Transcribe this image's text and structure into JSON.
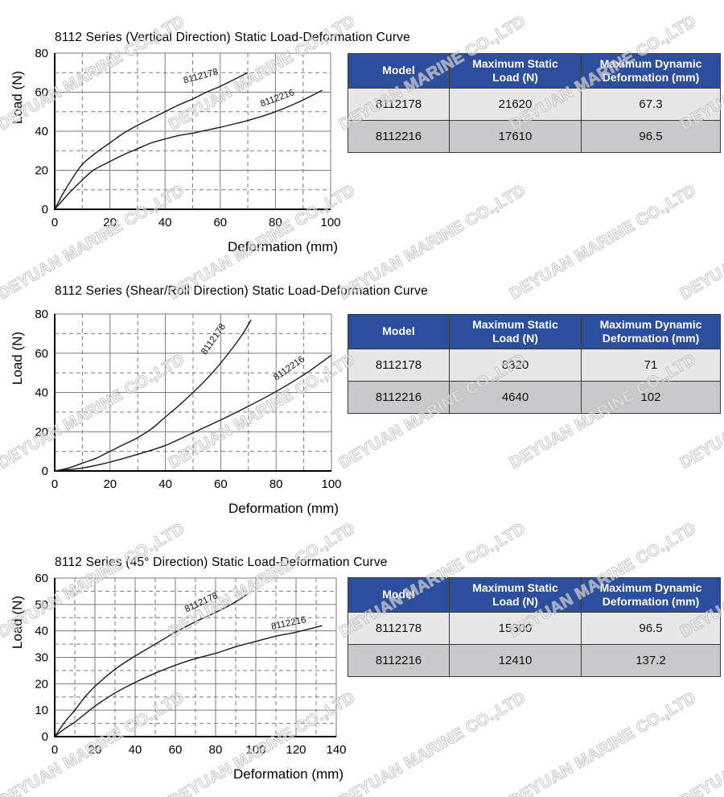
{
  "watermark": {
    "text": "DEYUAN MARINE CO.,LTD"
  },
  "colors": {
    "table_header_bg": "#2d4e9c",
    "table_row_light": "#e7e7e7",
    "table_row_dark": "#c9c9cb",
    "grid_line": "#7a7a7a",
    "curve": "#1a1a1a",
    "axis": "#000000"
  },
  "sections": [
    {
      "title": "8112 Series (Vertical Direction) Static Load-Deformation Curve",
      "table": {
        "headers": [
          "Model",
          "Maximum Static\nLoad (N)",
          "Maximum Dynamic\nDeformation (mm)"
        ],
        "rows": [
          [
            "8112178",
            "21620",
            "67.3"
          ],
          [
            "8112216",
            "17610",
            "96.5"
          ]
        ]
      }
    },
    {
      "title": "8112 Series (Shear/Roll Direction) Static Load-Deformation Curve",
      "table": {
        "headers": [
          "Model",
          "Maximum Static\nLoad (N)",
          "Maximum Dynamic\nDeformation (mm)"
        ],
        "rows": [
          [
            "8112178",
            "8320",
            "71"
          ],
          [
            "8112216",
            "4640",
            "102"
          ]
        ]
      }
    },
    {
      "title": "8112 Series (45° Direction) Static Load-Deformation Curve",
      "table": {
        "headers": [
          "Model",
          "Maximum Static\nLoad (N)",
          "Maximum Dynamic\nDeformation (mm)"
        ],
        "rows": [
          [
            "8112178",
            "15300",
            "96.5"
          ],
          [
            "8112216",
            "12410",
            "137.2"
          ]
        ]
      }
    }
  ],
  "chart_data": [
    {
      "type": "line",
      "title": "8112 Series (Vertical Direction) Static Load-Deformation Curve",
      "xlabel": "Deformation (mm)",
      "ylabel": "Load (N)",
      "xlim": [
        0,
        100
      ],
      "ylim": [
        0,
        80
      ],
      "xticks": [
        0,
        20,
        40,
        60,
        80,
        100
      ],
      "yticks": [
        0,
        20,
        40,
        60,
        80
      ],
      "x_minor": 10,
      "y_minor": 10,
      "grid": "solid major, dashed minor",
      "legend_position": "inline curve labels",
      "series": [
        {
          "name": "8112178",
          "points": [
            [
              0,
              0
            ],
            [
              3,
              8
            ],
            [
              6,
              15
            ],
            [
              10,
              23
            ],
            [
              15,
              29
            ],
            [
              20,
              34
            ],
            [
              25,
              39
            ],
            [
              30,
              43
            ],
            [
              35,
              46.5
            ],
            [
              40,
              50
            ],
            [
              45,
              53.5
            ],
            [
              50,
              56.5
            ],
            [
              55,
              60
            ],
            [
              60,
              63
            ],
            [
              65,
              66.5
            ],
            [
              70,
              70
            ]
          ],
          "label_pos": [
            47,
            64.5
          ],
          "label_rot": -15
        },
        {
          "name": "8112216",
          "points": [
            [
              0,
              0
            ],
            [
              5,
              8
            ],
            [
              10,
              15
            ],
            [
              14,
              20
            ],
            [
              20,
              24.5
            ],
            [
              25,
              28
            ],
            [
              30,
              31
            ],
            [
              35,
              34
            ],
            [
              40,
              36
            ],
            [
              45,
              37.8
            ],
            [
              50,
              39
            ],
            [
              55,
              40.5
            ],
            [
              60,
              42
            ],
            [
              65,
              43.7
            ],
            [
              70,
              45.5
            ],
            [
              75,
              47.6
            ],
            [
              80,
              50
            ],
            [
              85,
              52.8
            ],
            [
              90,
              56
            ],
            [
              97,
              61
            ]
          ],
          "label_pos": [
            75,
            52.5
          ],
          "label_rot": -20
        }
      ]
    },
    {
      "type": "line",
      "title": "8112 Series (Shear/Roll Direction) Static Load-Deformation Curve",
      "xlabel": "Deformation (mm)",
      "ylabel": "Load (N)",
      "xlim": [
        0,
        100
      ],
      "ylim": [
        0,
        80
      ],
      "xticks": [
        0,
        20,
        40,
        60,
        80,
        100
      ],
      "yticks": [
        0,
        20,
        40,
        60,
        80
      ],
      "x_minor": 10,
      "y_minor": 10,
      "grid": "solid major, dashed minor",
      "legend_position": "inline curve labels",
      "series": [
        {
          "name": "8112178",
          "points": [
            [
              0,
              0
            ],
            [
              5,
              1.5
            ],
            [
              10,
              4
            ],
            [
              15,
              6.5
            ],
            [
              20,
              10
            ],
            [
              25,
              13.5
            ],
            [
              30,
              17
            ],
            [
              35,
              21.5
            ],
            [
              40,
              27.5
            ],
            [
              45,
              33.5
            ],
            [
              50,
              40
            ],
            [
              55,
              47
            ],
            [
              60,
              55
            ],
            [
              65,
              64
            ],
            [
              68,
              70
            ],
            [
              71,
              77
            ]
          ],
          "label_pos": [
            54.5,
            59
          ],
          "label_rot": -55
        },
        {
          "name": "8112216",
          "points": [
            [
              0,
              0
            ],
            [
              10,
              1.5
            ],
            [
              20,
              4.5
            ],
            [
              30,
              8.5
            ],
            [
              40,
              13
            ],
            [
              50,
              19.5
            ],
            [
              60,
              26
            ],
            [
              70,
              33
            ],
            [
              80,
              40.5
            ],
            [
              90,
              49
            ],
            [
              100,
              59
            ]
          ],
          "label_pos": [
            80,
            46
          ],
          "label_rot": -35
        }
      ]
    },
    {
      "type": "line",
      "title": "8112 Series (45° Direction) Static Load-Deformation Curve",
      "xlabel": "Deformation (mm)",
      "ylabel": "Load (N)",
      "xlim": [
        0,
        140
      ],
      "ylim": [
        0,
        60
      ],
      "xticks": [
        0,
        20,
        40,
        60,
        80,
        100,
        120,
        140
      ],
      "yticks": [
        0,
        10,
        20,
        30,
        40,
        50,
        60
      ],
      "x_minor": 10,
      "y_minor": 5,
      "grid": "solid major, dashed minor",
      "legend_position": "inline curve labels",
      "series": [
        {
          "name": "8112178",
          "points": [
            [
              0,
              0
            ],
            [
              5,
              5.5
            ],
            [
              10,
              10
            ],
            [
              15,
              15
            ],
            [
              20,
              19
            ],
            [
              30,
              25.5
            ],
            [
              40,
              30.5
            ],
            [
              50,
              35
            ],
            [
              60,
              39.5
            ],
            [
              70,
              43.5
            ],
            [
              80,
              47
            ],
            [
              90,
              51
            ],
            [
              96,
              54
            ]
          ],
          "label_pos": [
            65.5,
            47
          ],
          "label_rot": -25
        },
        {
          "name": "8112216",
          "points": [
            [
              0,
              0
            ],
            [
              5,
              3
            ],
            [
              10,
              5.5
            ],
            [
              20,
              11.5
            ],
            [
              30,
              16.5
            ],
            [
              40,
              20.5
            ],
            [
              50,
              24
            ],
            [
              60,
              27
            ],
            [
              70,
              29.5
            ],
            [
              80,
              31.5
            ],
            [
              90,
              34
            ],
            [
              100,
              36
            ],
            [
              110,
              38
            ],
            [
              120,
              39.5
            ],
            [
              133,
              42
            ]
          ],
          "label_pos": [
            108,
            40.5
          ],
          "label_rot": -12
        }
      ]
    }
  ]
}
